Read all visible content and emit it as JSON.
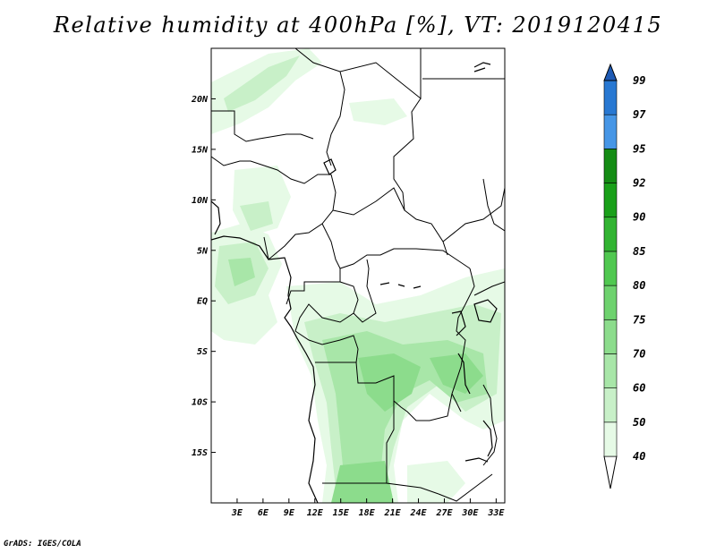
{
  "title": "Relative humidity at 400hPa [%], VT: 2019120415",
  "credit": "GrADS: IGES/COLA",
  "map": {
    "lon_range": [
      0,
      34
    ],
    "lat_range": [
      -20,
      25
    ],
    "lat_ticks": [
      "20N",
      "15N",
      "10N",
      "5N",
      "EQ",
      "5S",
      "10S",
      "15S"
    ],
    "lon_ticks": [
      "3E",
      "6E",
      "9E",
      "12E",
      "15E",
      "18E",
      "21E",
      "24E",
      "27E",
      "30E",
      "33E"
    ]
  },
  "colorbar": {
    "levels": [
      "40",
      "50",
      "60",
      "70",
      "75",
      "80",
      "85",
      "90",
      "92",
      "95",
      "97",
      "99"
    ],
    "colors": [
      "#ffffff",
      "#e6fae6",
      "#c8f0c8",
      "#a8e6a8",
      "#8cdc8c",
      "#6ed26e",
      "#50c850",
      "#32b432",
      "#19a019",
      "#148c14",
      "#4696e6",
      "#2878d2",
      "#1e5ab4"
    ]
  }
}
